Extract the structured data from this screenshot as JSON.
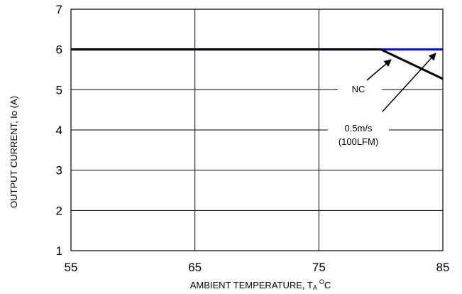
{
  "chart_data": {
    "type": "line",
    "xlabel": "AMBIENT TEMPERATURE, TA OC",
    "xlabel_parts": {
      "main": "AMBIENT TEMPERATURE, T",
      "sub": "A",
      "sup": "O",
      "unit": "C"
    },
    "ylabel": "OUTPUT CURRENT, Io  (A)",
    "xlim": [
      55,
      85
    ],
    "ylim": [
      1,
      7
    ],
    "x_ticks": [
      "55",
      "65",
      "75",
      "85"
    ],
    "y_ticks": [
      "1",
      "2",
      "3",
      "4",
      "5",
      "6",
      "7"
    ],
    "grid": true,
    "series": [
      {
        "name": "NC",
        "color": "#000000",
        "x": [
          55,
          80,
          85
        ],
        "y": [
          6,
          6,
          5.27
        ]
      },
      {
        "name": "0.5m/s (100LFM)",
        "color": "#0000ff",
        "x": [
          55,
          85
        ],
        "y": [
          6,
          6
        ]
      }
    ],
    "annotations": [
      {
        "text": "NC"
      },
      {
        "text": "0.5m/s"
      },
      {
        "text": "(100LFM)"
      }
    ]
  }
}
